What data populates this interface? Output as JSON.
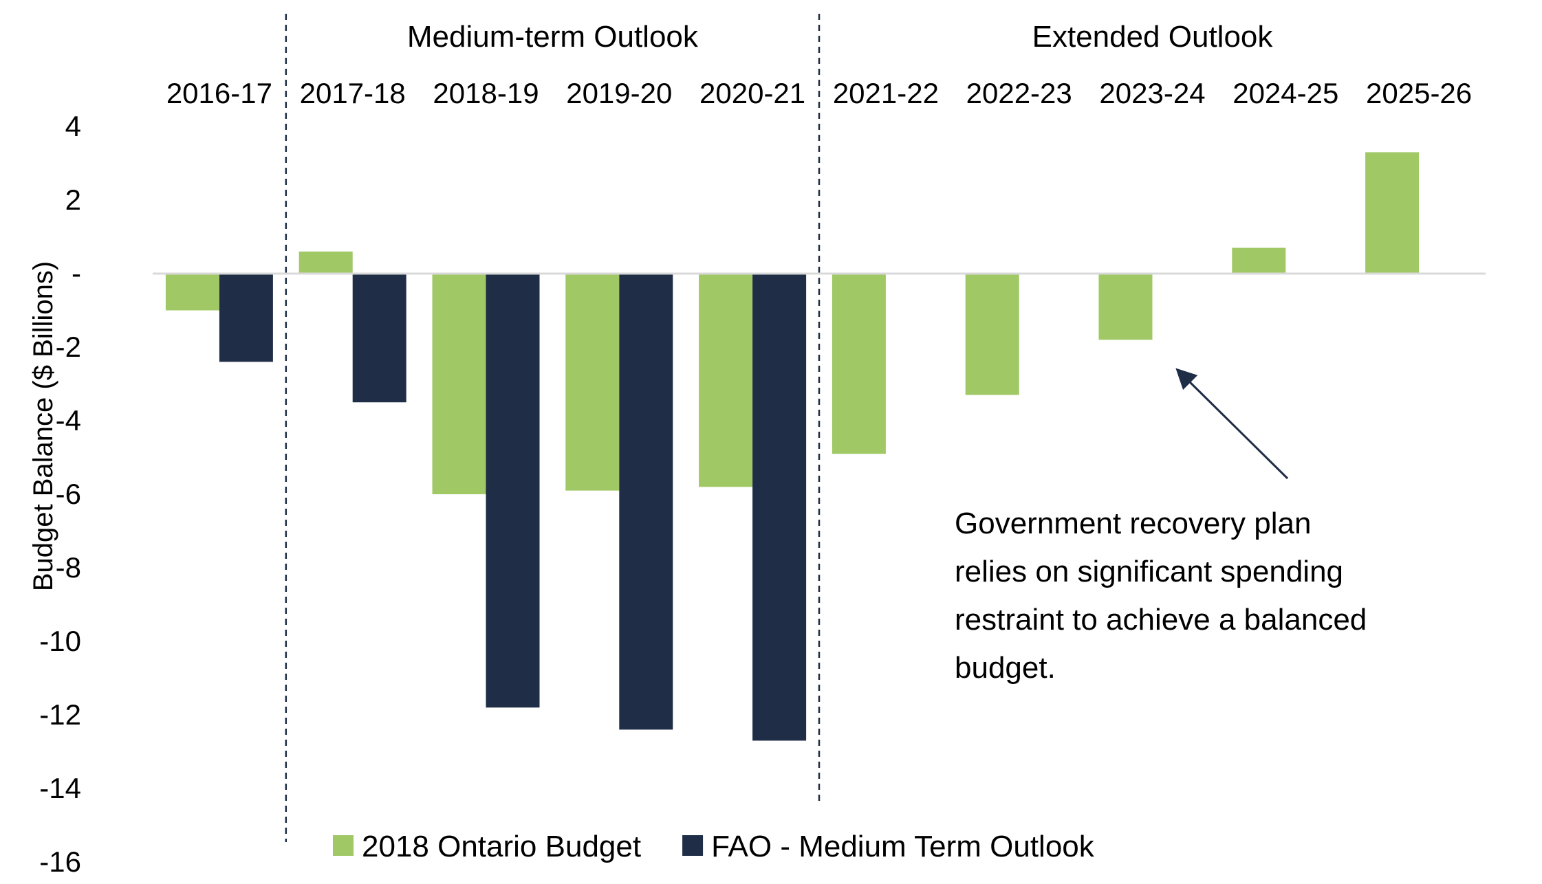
{
  "chart_data": {
    "type": "bar",
    "ylabel": "Budget Balance ($ Billions)",
    "xlabel": "",
    "ylim": [
      -16,
      4
    ],
    "yticks": [
      4,
      2,
      0,
      -2,
      -4,
      -6,
      -8,
      -10,
      -12,
      -14,
      -16
    ],
    "ytick_labels": [
      "4",
      "2",
      "-",
      "-2",
      "-4",
      "-6",
      "-8",
      "-10",
      "-12",
      "-14",
      "-16"
    ],
    "categories": [
      "2016-17",
      "2017-18",
      "2018-19",
      "2019-20",
      "2020-21",
      "2021-22",
      "2022-23",
      "2023-24",
      "2024-25",
      "2025-26"
    ],
    "series": [
      {
        "name": "2018 Ontario Budget",
        "color": "#a0c865",
        "values": [
          -1.0,
          0.6,
          -6.0,
          -5.9,
          -5.8,
          -4.9,
          -3.3,
          -1.8,
          0.7,
          3.3
        ]
      },
      {
        "name": "FAO - Medium Term Outlook",
        "color": "#1f2d47",
        "values": [
          -2.4,
          -3.5,
          -11.8,
          -12.4,
          -12.7,
          null,
          null,
          null,
          null,
          null
        ]
      }
    ],
    "sections": [
      {
        "label": "Medium-term Outlook",
        "from": 1,
        "to": 4
      },
      {
        "label": "Extended Outlook",
        "from": 5,
        "to": 9
      }
    ],
    "annotation": {
      "lines": [
        "Government recovery plan",
        "relies on significant spending",
        "restraint to achieve a balanced",
        "budget."
      ],
      "points_to_category": "2023-24"
    },
    "legend_position": "bottom",
    "grid": false
  }
}
